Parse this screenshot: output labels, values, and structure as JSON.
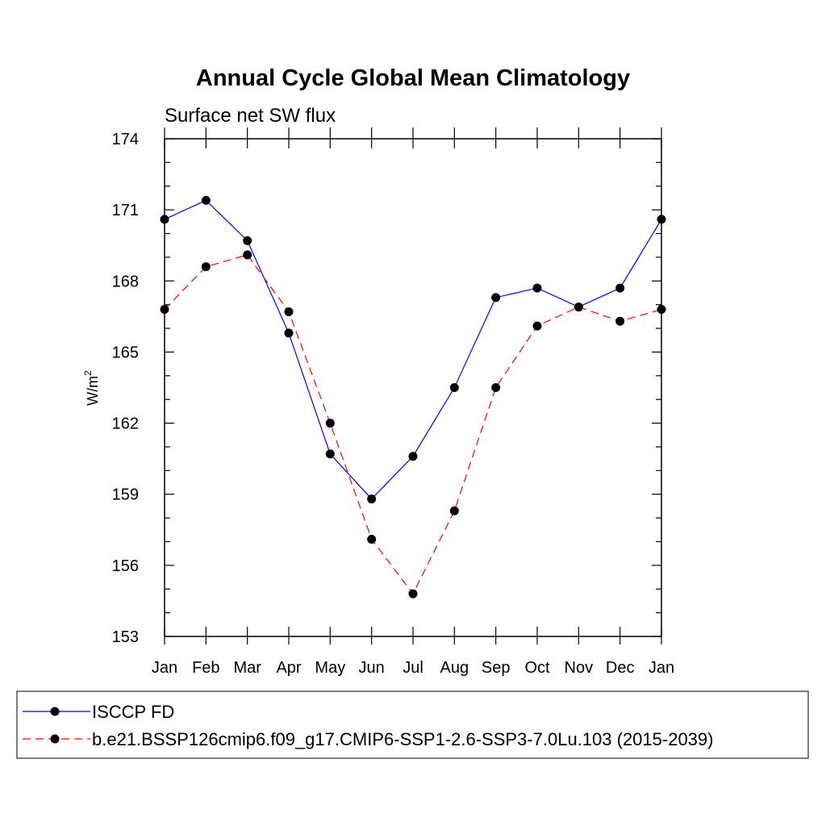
{
  "chart_data": {
    "type": "line",
    "title": "Annual Cycle Global Mean Climatology",
    "subtitle": "Surface net SW flux",
    "xlabel": "",
    "ylabel": "W/m",
    "ylabel_superscript": "2",
    "categories": [
      "Jan",
      "Feb",
      "Mar",
      "Apr",
      "May",
      "Jun",
      "Jul",
      "Aug",
      "Sep",
      "Oct",
      "Nov",
      "Dec",
      "Jan"
    ],
    "ylim": [
      153,
      174
    ],
    "yticks": [
      "153",
      "156",
      "159",
      "162",
      "165",
      "168",
      "171",
      "174"
    ],
    "ytick_values": [
      153,
      156,
      159,
      162,
      165,
      168,
      171,
      174
    ],
    "grid": false,
    "legend_placement": "bottom",
    "series": [
      {
        "name": "ISCCP FD",
        "color": "#0000ff",
        "dash": "solid",
        "values": [
          170.6,
          171.4,
          169.7,
          165.8,
          160.7,
          158.8,
          160.6,
          163.5,
          167.3,
          167.7,
          166.9,
          167.7,
          170.6
        ]
      },
      {
        "name": "b.e21.BSSP126cmip6.f09_g17.CMIP6-SSP1-2.6-SSP3-7.0Lu.103 (2015-2039)",
        "color": "#ff0000",
        "dash": "dashed",
        "values": [
          166.8,
          168.6,
          169.1,
          166.7,
          162.0,
          157.1,
          154.8,
          158.3,
          163.5,
          166.1,
          166.9,
          166.3,
          166.8
        ]
      }
    ]
  }
}
